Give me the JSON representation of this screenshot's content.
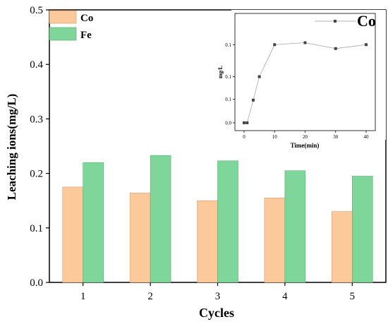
{
  "chart_data": [
    {
      "type": "bar",
      "categories": [
        "1",
        "2",
        "3",
        "4",
        "5"
      ],
      "series": [
        {
          "name": "Co",
          "values": [
            0.175,
            0.164,
            0.15,
            0.155,
            0.13
          ],
          "color": "#fcc99a"
        },
        {
          "name": "Fe",
          "values": [
            0.22,
            0.233,
            0.223,
            0.205,
            0.195
          ],
          "color": "#7ed69a"
        }
      ],
      "xlabel": "Cycles",
      "ylabel": "Leaching ions(mg/L)",
      "ylim": [
        0,
        0.5
      ],
      "yticks": [
        "0.0",
        "0.1",
        "0.2",
        "0.3",
        "0.4",
        "0.5"
      ],
      "legend_position": "top-left",
      "grid": false
    },
    {
      "type": "line",
      "x": [
        0,
        1,
        3,
        5,
        10,
        20,
        30,
        40
      ],
      "y": [
        0.0,
        0.0,
        0.058,
        0.118,
        0.2,
        0.205,
        0.19,
        0.2
      ],
      "series_name": "Co",
      "xlabel": "Time(min)",
      "ylabel": "mg/L",
      "xticks": [
        "0",
        "10",
        "20",
        "30",
        "40"
      ],
      "yticks": [
        "0.0",
        "0.1",
        "0.1",
        "0.1"
      ],
      "xlim": [
        -3,
        43
      ],
      "ylim": [
        -0.02,
        0.28
      ],
      "legend_position": "top-right",
      "grid": false,
      "color": "#555555"
    }
  ]
}
